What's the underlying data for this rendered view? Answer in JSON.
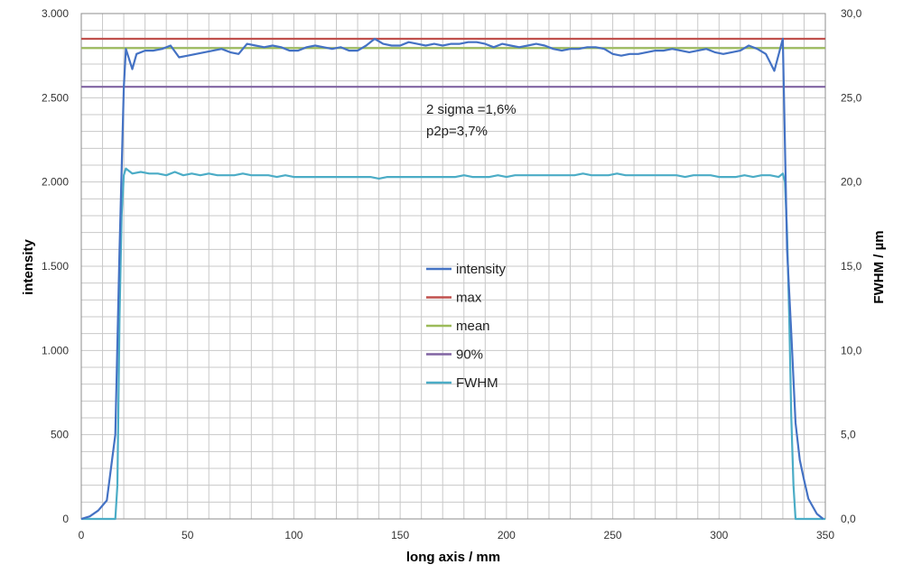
{
  "chart_data": {
    "type": "line",
    "xlabel": "long axis / mm",
    "ylabel": "intensity",
    "y2label": "FWHM / µm",
    "xlim": [
      0,
      350
    ],
    "ylim": [
      0,
      3000
    ],
    "y2lim": [
      0,
      30
    ],
    "x_ticks": [
      0,
      50,
      100,
      150,
      200,
      250,
      300,
      350
    ],
    "x_tick_labels": [
      "0",
      "50",
      "100",
      "150",
      "200",
      "250",
      "300",
      "350"
    ],
    "y_ticks": [
      0,
      500,
      1000,
      1500,
      2000,
      2500,
      3000
    ],
    "y_tick_labels": [
      "0",
      "500",
      "1.000",
      "1.500",
      "2.000",
      "2.500",
      "3.000"
    ],
    "y2_ticks": [
      0,
      5,
      10,
      15,
      20,
      25,
      30
    ],
    "y2_tick_labels": [
      "0,0",
      "5,0",
      "10,0",
      "15,0",
      "20,0",
      "25,0",
      "30,0"
    ],
    "grid": true,
    "legend_position": "center",
    "annotations": [
      "2 sigma =1,6%",
      "p2p=3,7%"
    ],
    "series": [
      {
        "name": "intensity",
        "axis": "left",
        "color": "#4472C4",
        "x": [
          0,
          4,
          8,
          12,
          16,
          18,
          20,
          21,
          24,
          26,
          30,
          34,
          38,
          42,
          46,
          50,
          54,
          58,
          62,
          66,
          70,
          74,
          78,
          82,
          86,
          90,
          94,
          98,
          102,
          106,
          110,
          114,
          118,
          122,
          126,
          130,
          134,
          138,
          142,
          146,
          150,
          154,
          158,
          162,
          166,
          170,
          174,
          178,
          182,
          186,
          190,
          194,
          198,
          202,
          206,
          210,
          214,
          218,
          222,
          226,
          230,
          234,
          238,
          242,
          246,
          250,
          254,
          258,
          262,
          266,
          270,
          274,
          278,
          282,
          286,
          290,
          294,
          298,
          302,
          306,
          310,
          314,
          318,
          322,
          326,
          330,
          332,
          334,
          336,
          338,
          340,
          342,
          346,
          349
        ],
        "y": [
          0,
          15,
          50,
          110,
          500,
          1600,
          2560,
          2790,
          2670,
          2760,
          2780,
          2780,
          2790,
          2810,
          2740,
          2750,
          2760,
          2770,
          2780,
          2790,
          2770,
          2760,
          2820,
          2810,
          2800,
          2810,
          2800,
          2780,
          2780,
          2800,
          2810,
          2800,
          2790,
          2800,
          2780,
          2780,
          2810,
          2850,
          2820,
          2810,
          2810,
          2830,
          2820,
          2810,
          2820,
          2810,
          2820,
          2820,
          2830,
          2830,
          2820,
          2800,
          2820,
          2810,
          2800,
          2810,
          2820,
          2810,
          2790,
          2780,
          2790,
          2790,
          2800,
          2800,
          2790,
          2760,
          2750,
          2760,
          2760,
          2770,
          2780,
          2780,
          2790,
          2780,
          2770,
          2780,
          2790,
          2770,
          2760,
          2770,
          2780,
          2810,
          2790,
          2760,
          2660,
          2850,
          1600,
          1100,
          570,
          350,
          230,
          120,
          30,
          0
        ]
      },
      {
        "name": "max",
        "axis": "left",
        "color": "#C0504D",
        "x": [
          0,
          350
        ],
        "y": [
          2850,
          2850
        ]
      },
      {
        "name": "mean",
        "axis": "left",
        "color": "#9BBB59",
        "x": [
          0,
          350
        ],
        "y": [
          2795,
          2795
        ]
      },
      {
        "name": "90%",
        "axis": "left",
        "color": "#8064A2",
        "x": [
          0,
          350
        ],
        "y": [
          2565,
          2565
        ]
      },
      {
        "name": "FWHM",
        "axis": "right",
        "color": "#4BACC6",
        "x": [
          0,
          16,
          17,
          18,
          19,
          20,
          21,
          24,
          28,
          32,
          36,
          40,
          44,
          48,
          52,
          56,
          60,
          64,
          68,
          72,
          76,
          80,
          84,
          88,
          92,
          96,
          100,
          104,
          108,
          112,
          116,
          120,
          124,
          128,
          132,
          136,
          140,
          144,
          148,
          152,
          156,
          160,
          164,
          168,
          172,
          176,
          180,
          184,
          188,
          192,
          196,
          200,
          204,
          208,
          212,
          216,
          220,
          224,
          228,
          232,
          236,
          240,
          244,
          248,
          252,
          256,
          260,
          264,
          268,
          272,
          276,
          280,
          284,
          288,
          292,
          296,
          300,
          304,
          308,
          312,
          316,
          320,
          324,
          328,
          330,
          331,
          332,
          333,
          334,
          335,
          336,
          340,
          350
        ],
        "y": [
          0,
          0,
          2,
          12,
          18,
          20.4,
          20.8,
          20.5,
          20.6,
          20.5,
          20.5,
          20.4,
          20.6,
          20.4,
          20.5,
          20.4,
          20.5,
          20.4,
          20.4,
          20.4,
          20.5,
          20.4,
          20.4,
          20.4,
          20.3,
          20.4,
          20.3,
          20.3,
          20.3,
          20.3,
          20.3,
          20.3,
          20.3,
          20.3,
          20.3,
          20.3,
          20.2,
          20.3,
          20.3,
          20.3,
          20.3,
          20.3,
          20.3,
          20.3,
          20.3,
          20.3,
          20.4,
          20.3,
          20.3,
          20.3,
          20.4,
          20.3,
          20.4,
          20.4,
          20.4,
          20.4,
          20.4,
          20.4,
          20.4,
          20.4,
          20.5,
          20.4,
          20.4,
          20.4,
          20.5,
          20.4,
          20.4,
          20.4,
          20.4,
          20.4,
          20.4,
          20.4,
          20.3,
          20.4,
          20.4,
          20.4,
          20.3,
          20.3,
          20.3,
          20.4,
          20.3,
          20.4,
          20.4,
          20.3,
          20.5,
          20.0,
          17,
          12,
          6,
          2,
          0,
          0,
          0
        ]
      }
    ]
  }
}
